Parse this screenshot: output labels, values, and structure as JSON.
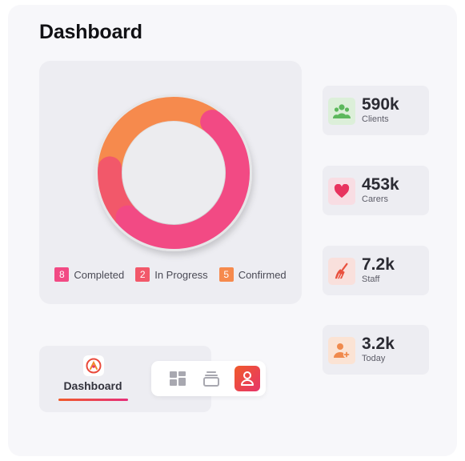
{
  "header": {
    "title": "Dashboard"
  },
  "chart_data": {
    "type": "pie",
    "categories": [
      "Completed",
      "In Progress",
      "Confirmed"
    ],
    "values": [
      8,
      2,
      5
    ],
    "colors": [
      "#f24a84",
      "#f2586a",
      "#f68a4d"
    ]
  },
  "legend": [
    {
      "count": "8",
      "label": "Completed",
      "color": "#f24a84"
    },
    {
      "count": "2",
      "label": "In Progress",
      "color": "#f2586a"
    },
    {
      "count": "5",
      "label": "Confirmed",
      "color": "#f68a4d"
    }
  ],
  "stats": [
    {
      "value": "590k",
      "label": "Clients",
      "icon": "users-icon",
      "color": "#5cb85c"
    },
    {
      "value": "453k",
      "label": "Carers",
      "icon": "heart-icon",
      "color": "#e8335e"
    },
    {
      "value": "7.2k",
      "label": "Staff",
      "icon": "broom-icon",
      "color": "#e9513e"
    },
    {
      "value": "3.2k",
      "label": "Today",
      "icon": "user-plus-icon",
      "color": "#f08a4d"
    }
  ],
  "nav": {
    "label": "Dashboard",
    "logo_icon": "app-logo-icon",
    "bar_icons": [
      "grid-icon",
      "stack-icon",
      "user-icon"
    ]
  }
}
